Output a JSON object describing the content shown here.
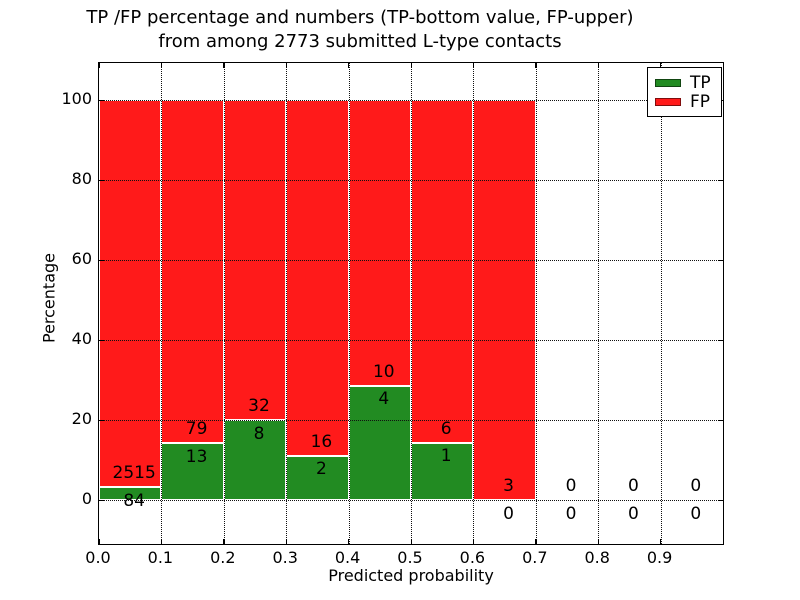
{
  "figure": {
    "title_line1": "TP /FP percentage and numbers (TP-bottom value, FP-upper)",
    "title_line2": "from among 2773 submitted L-type contacts"
  },
  "chart_data": {
    "type": "bar",
    "stacked": true,
    "title": "TP /FP percentage and numbers (TP-bottom value, FP-upper)\nfrom among 2773 submitted L-type contacts",
    "xlabel": "Predicted probability",
    "ylabel": "Percentage",
    "xlim": [
      0.0,
      1.0
    ],
    "ylim": [
      -11,
      109.25
    ],
    "bin_width": 0.1,
    "bin_starts": [
      0.0,
      0.1,
      0.2,
      0.3,
      0.4,
      0.5,
      0.6,
      0.7,
      0.8,
      0.9
    ],
    "x_ticks": [
      0.0,
      0.1,
      0.2,
      0.3,
      0.4,
      0.5,
      0.6,
      0.7,
      0.8,
      0.9
    ],
    "x_tick_labels": [
      "0.0",
      "0.1",
      "0.2",
      "0.3",
      "0.4",
      "0.5",
      "0.6",
      "0.7",
      "0.8",
      "0.9"
    ],
    "y_ticks": [
      0,
      20,
      40,
      60,
      80,
      100
    ],
    "y_tick_labels": [
      "0",
      "20",
      "40",
      "60",
      "80",
      "100"
    ],
    "grid": "dotted",
    "legend_position": "upper right",
    "series": [
      {
        "name": "TP",
        "color": "#228B22",
        "counts": [
          84,
          13,
          8,
          2,
          4,
          1,
          0,
          0,
          0,
          0
        ],
        "percent": [
          3.23,
          14.13,
          20.0,
          11.11,
          28.57,
          14.29,
          0.0,
          0.0,
          0.0,
          0.0
        ]
      },
      {
        "name": "FP",
        "color": "#FF1A1A",
        "counts": [
          2515,
          79,
          32,
          16,
          10,
          6,
          3,
          0,
          0,
          0
        ],
        "percent": [
          96.77,
          85.87,
          80.0,
          88.89,
          71.43,
          85.71,
          100.0,
          0.0,
          0.0,
          0.0
        ]
      }
    ]
  }
}
